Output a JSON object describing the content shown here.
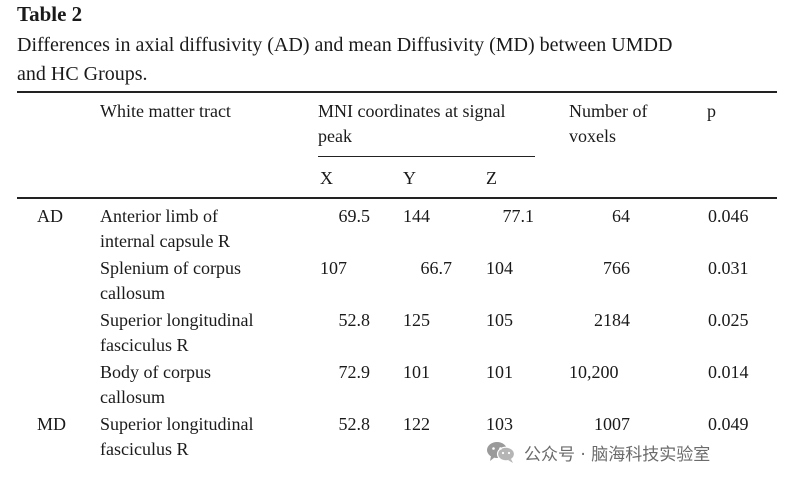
{
  "table_label": "Table 2",
  "caption_line1": "Differences in axial diffusivity (AD) and mean Diffusivity (MD) between UMDD",
  "caption_line2": "and HC Groups.",
  "headers": {
    "tract_col": "White matter tract",
    "mni_line1": "MNI coordinates at signal",
    "mni_line2": "peak",
    "voxels_line1": "Number of",
    "voxels_line2": "voxels",
    "p": "p",
    "x": "X",
    "y": "Y",
    "z": "Z"
  },
  "rows": [
    {
      "group": "AD",
      "tract_line1": "Anterior limb of",
      "tract_line2": "internal capsule R",
      "x": "69.5",
      "y": "144",
      "z": "77.1",
      "voxels": "64",
      "p": "0.046"
    },
    {
      "group": "",
      "tract_line1": "Splenium of corpus",
      "tract_line2": "callosum",
      "x": "107",
      "y": "66.7",
      "z": "104",
      "voxels": "766",
      "p": "0.031"
    },
    {
      "group": "",
      "tract_line1": "Superior longitudinal",
      "tract_line2": "fasciculus R",
      "x": "52.8",
      "y": "125",
      "z": "105",
      "voxels": "2184",
      "p": "0.025"
    },
    {
      "group": "",
      "tract_line1": "Body of corpus",
      "tract_line2": "callosum",
      "x": "72.9",
      "y": "101",
      "z": "101",
      "voxels": "10,200",
      "p": "0.014"
    },
    {
      "group": "MD",
      "tract_line1": "Superior longitudinal",
      "tract_line2": "fasciculus R",
      "x": "52.8",
      "y": "122",
      "z": "103",
      "voxels": "1007",
      "p": "0.049"
    }
  ],
  "watermark": {
    "text": "公众号 · 脑海科技实验室",
    "icon": "wechat-icon"
  }
}
